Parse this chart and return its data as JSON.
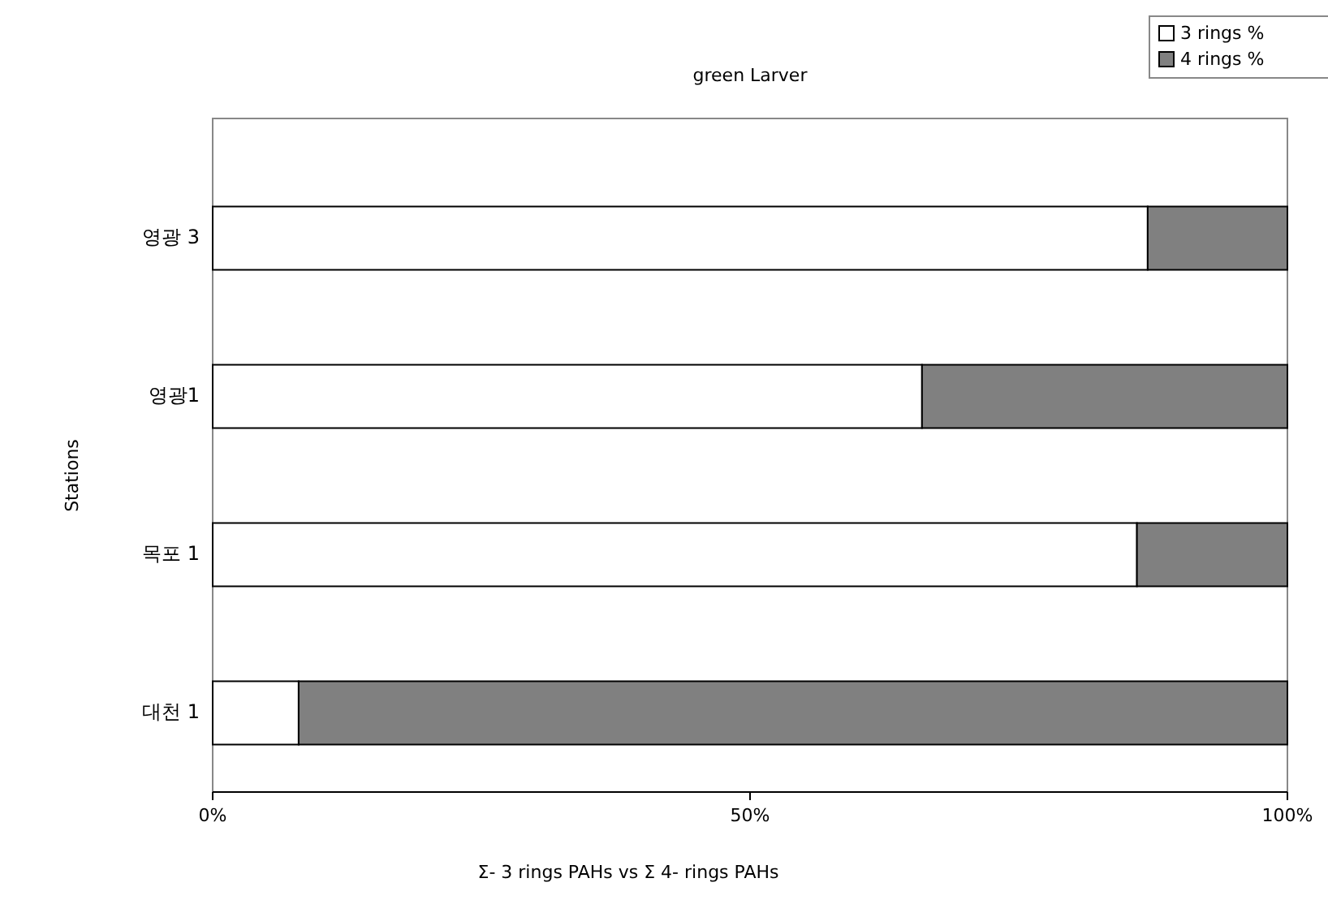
{
  "chart_data": {
    "type": "bar",
    "orientation": "horizontal",
    "stacked": true,
    "title": "green Larver",
    "xlabel": "Σ- 3 rings PAHs vs Σ 4- rings PAHs",
    "ylabel": "Stations",
    "categories": [
      "영광 3",
      "영광1",
      "목포 1",
      "대천 1"
    ],
    "series": [
      {
        "name": "3 rings  %",
        "color": "#ffffff",
        "values": [
          87,
          66,
          86,
          8
        ]
      },
      {
        "name": "4 rings  %",
        "color": "#808080",
        "values": [
          13,
          34,
          14,
          92
        ]
      }
    ],
    "xlim": [
      0,
      100
    ],
    "xticks": [
      {
        "value": 0,
        "label": "0%"
      },
      {
        "value": 50,
        "label": "50%"
      },
      {
        "value": 100,
        "label": "100%"
      }
    ],
    "legend": "top right"
  }
}
